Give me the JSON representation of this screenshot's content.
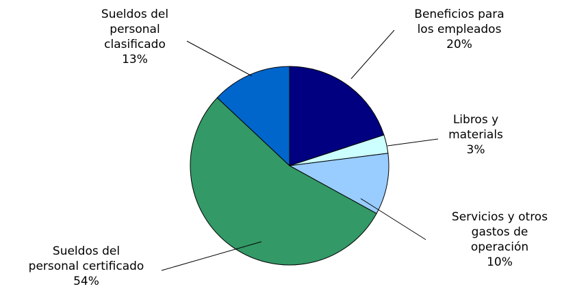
{
  "chart_data": {
    "type": "pie",
    "title": "",
    "slices": [
      {
        "label_lines": [
          "Beneficios para",
          "los empleados"
        ],
        "percent_label": "20%",
        "value": 20,
        "color": "#000080"
      },
      {
        "label_lines": [
          "Libros y",
          "materials"
        ],
        "percent_label": "3%",
        "value": 3,
        "color": "#ccffff"
      },
      {
        "label_lines": [
          "Servicios y otros",
          "gastos de",
          "operación"
        ],
        "percent_label": "10%",
        "value": 10,
        "color": "#99ccff"
      },
      {
        "label_lines": [
          "Sueldos del",
          "personal certificado"
        ],
        "percent_label": "54%",
        "value": 54,
        "color": "#339966"
      },
      {
        "label_lines": [
          "Sueldos del",
          "personal",
          "clasificado"
        ],
        "percent_label": "13%",
        "value": 13,
        "color": "#0066cc"
      }
    ]
  }
}
